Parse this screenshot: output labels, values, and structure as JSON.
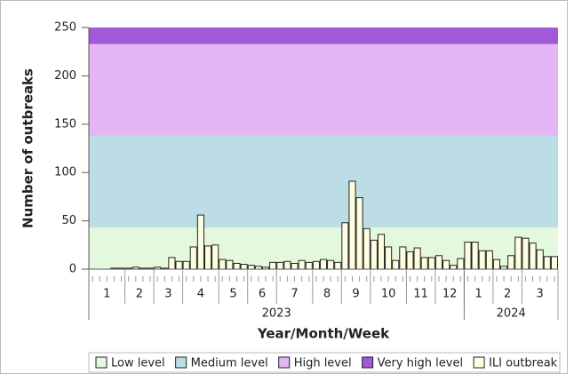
{
  "chart_data": {
    "type": "bar",
    "y_label": "Number of outbreaks",
    "x_label": "Year/Month/Week",
    "ylim": [
      0,
      250
    ],
    "yticks": [
      0,
      50,
      100,
      150,
      200,
      250
    ],
    "levels": [
      {
        "name": "Low level",
        "color": "#e3f8dd",
        "range": [
          0,
          43
        ]
      },
      {
        "name": "Medium level",
        "color": "#bcdde6",
        "range": [
          43,
          138
        ]
      },
      {
        "name": "High level",
        "color": "#e4b5f5",
        "range": [
          138,
          233
        ]
      },
      {
        "name": "Very high level",
        "color": "#a259d9",
        "range": [
          233,
          250
        ]
      }
    ],
    "series": [
      {
        "name": "ILI outbreak",
        "color": "#fdfde0",
        "values": [
          0,
          0,
          0,
          1,
          1,
          1,
          2,
          1,
          1,
          2,
          1,
          12,
          8,
          8,
          23,
          56,
          24,
          25,
          10,
          9,
          6,
          5,
          4,
          3,
          2,
          7,
          7,
          8,
          6,
          9,
          7,
          8,
          10,
          9,
          7,
          48,
          91,
          74,
          42,
          30,
          36,
          23,
          9,
          23,
          18,
          22,
          12,
          12,
          14,
          9,
          4,
          11,
          28,
          28,
          19,
          19,
          10,
          3,
          14,
          33,
          32,
          27,
          20,
          13,
          13
        ]
      }
    ],
    "months": [
      {
        "label": "1",
        "span": 5
      },
      {
        "label": "2",
        "span": 4
      },
      {
        "label": "3",
        "span": 4
      },
      {
        "label": "4",
        "span": 5
      },
      {
        "label": "5",
        "span": 4
      },
      {
        "label": "6",
        "span": 4
      },
      {
        "label": "7",
        "span": 5
      },
      {
        "label": "8",
        "span": 4
      },
      {
        "label": "9",
        "span": 4
      },
      {
        "label": "10",
        "span": 5
      },
      {
        "label": "11",
        "span": 4
      },
      {
        "label": "12",
        "span": 4
      },
      {
        "label": "1",
        "span": 4
      },
      {
        "label": "2",
        "span": 4
      },
      {
        "label": "3",
        "span": 5
      }
    ],
    "years": [
      {
        "label": "2023",
        "span": 52
      },
      {
        "label": "2024",
        "span": 13
      }
    ]
  }
}
